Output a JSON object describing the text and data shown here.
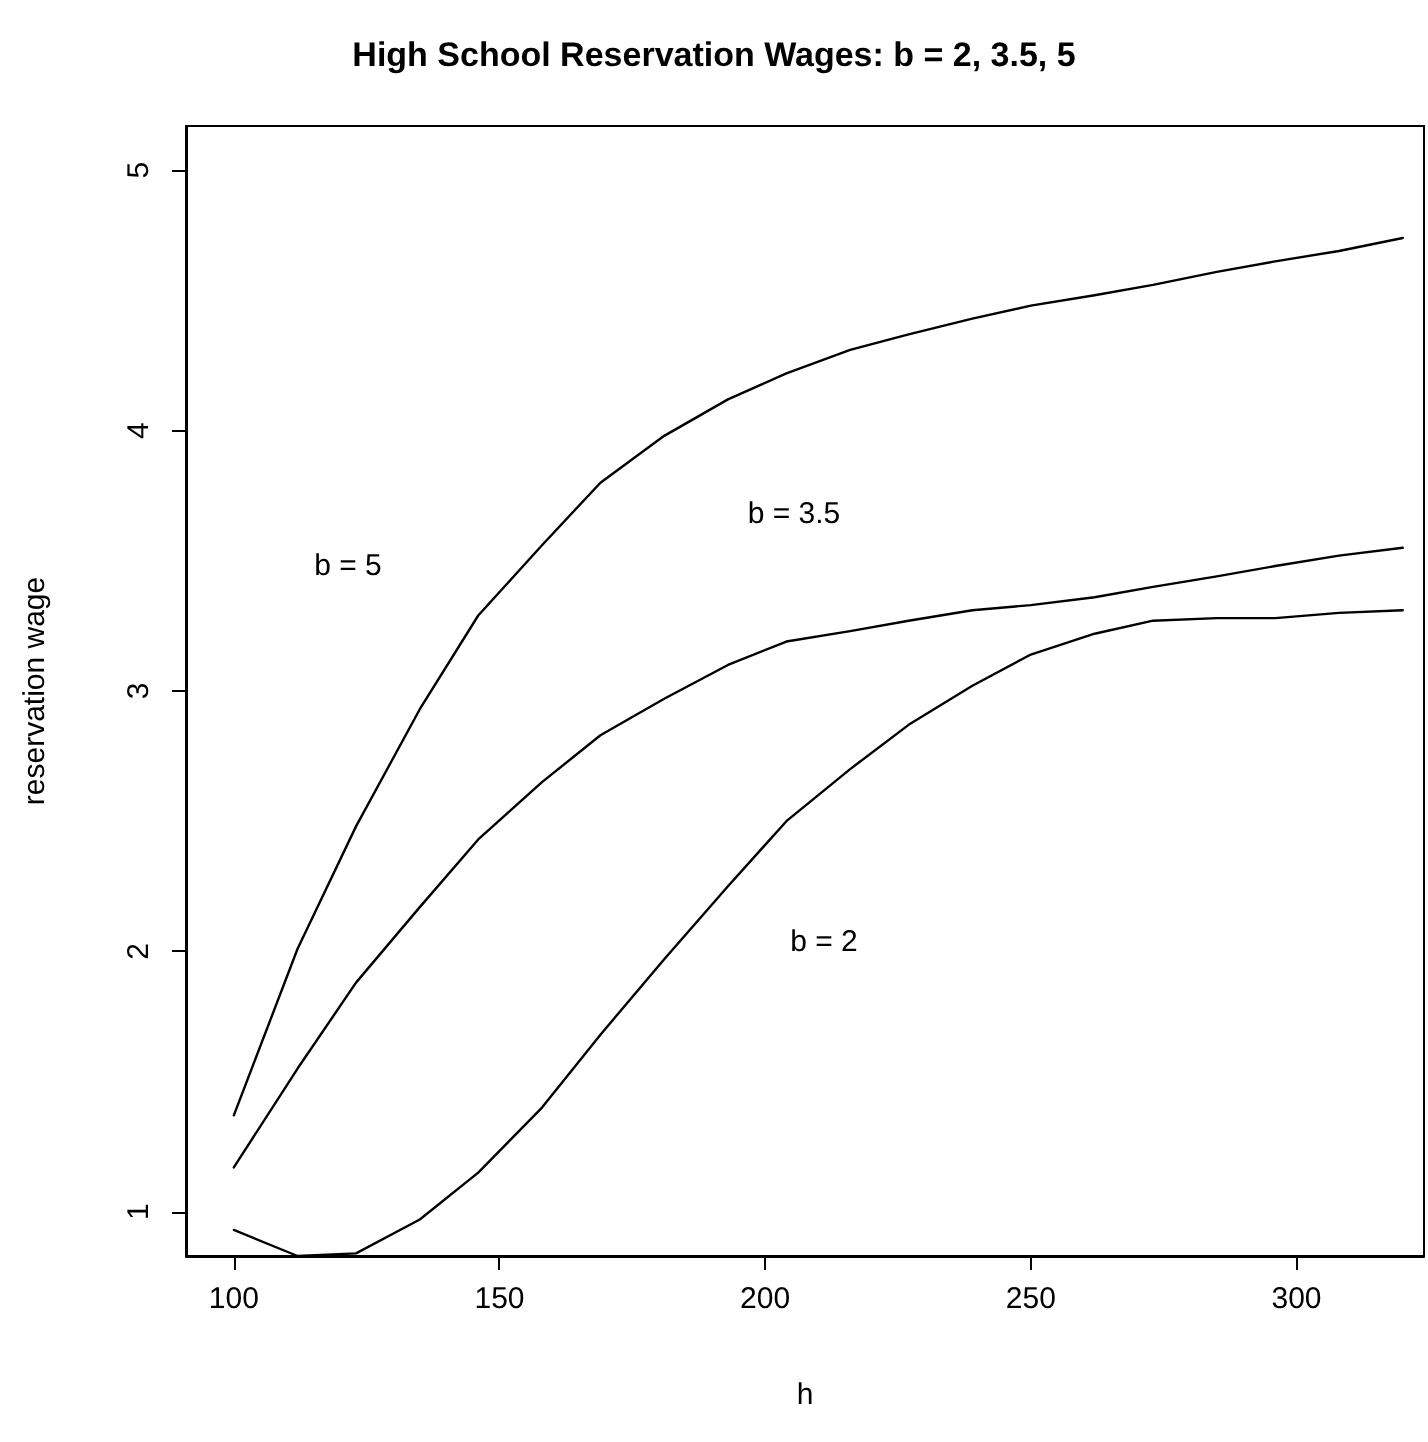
{
  "chart_data": {
    "type": "line",
    "title": "High School Reservation Wages: b = 2, 3.5, 5",
    "xlabel": "h",
    "ylabel": "reservation wage",
    "x": [
      100,
      112,
      123,
      135,
      146,
      158,
      169,
      181,
      193,
      204,
      216,
      227,
      239,
      250,
      262,
      273,
      285,
      296,
      308,
      320
    ],
    "series": [
      {
        "color": "#000000",
        "values": [
          0.93,
          0.83,
          0.84,
          0.97,
          1.15,
          1.4,
          1.68,
          1.97,
          2.25,
          2.5,
          2.7,
          2.87,
          3.02,
          3.14,
          3.22,
          3.27,
          3.28,
          3.28,
          3.3,
          3.31
        ]
      },
      {
        "color": "#000000",
        "values": [
          1.17,
          1.55,
          1.88,
          2.17,
          2.43,
          2.65,
          2.83,
          2.97,
          3.1,
          3.19,
          3.23,
          3.27,
          3.31,
          3.33,
          3.36,
          3.4,
          3.44,
          3.48,
          3.52,
          3.55
        ]
      },
      {
        "color": "#000000",
        "values": [
          1.37,
          2.01,
          2.48,
          2.93,
          3.29,
          3.56,
          3.8,
          3.98,
          4.12,
          4.22,
          4.31,
          4.37,
          4.43,
          4.48,
          4.52,
          4.56,
          4.61,
          4.65,
          4.69,
          4.74
        ]
      }
    ],
    "annotations": [
      "b = 5",
      "b = 3.5",
      "b = 2"
    ],
    "xlim": [
      91,
      324
    ],
    "xticks": [
      100,
      150,
      200,
      250,
      300
    ],
    "ylim": [
      0.83,
      5.17
    ],
    "yticks": [
      1,
      2,
      3,
      4,
      5
    ],
    "grid": false,
    "marker": "none",
    "line_style": "solid"
  }
}
